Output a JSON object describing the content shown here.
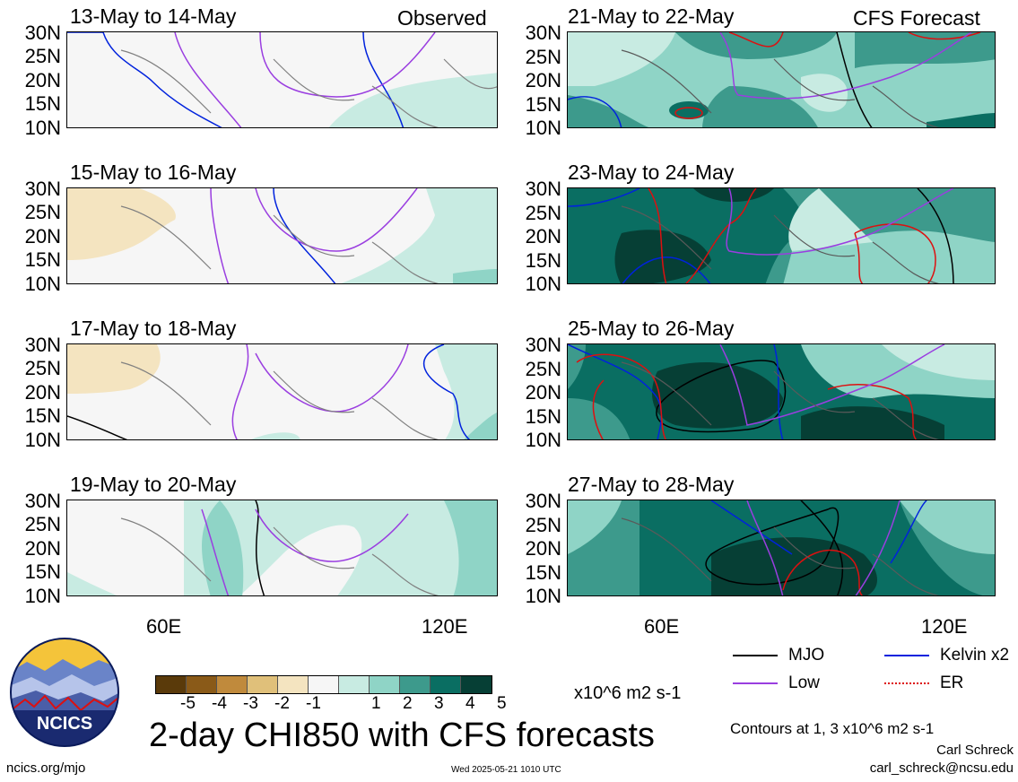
{
  "panels": [
    {
      "title": "13-May to 14-May",
      "tag": "Observed"
    },
    {
      "title": "15-May to 16-May",
      "tag": ""
    },
    {
      "title": "17-May to 18-May",
      "tag": ""
    },
    {
      "title": "19-May to 20-May",
      "tag": ""
    },
    {
      "title": "21-May to 22-May",
      "tag": "CFS Forecast"
    },
    {
      "title": "23-May to 24-May",
      "tag": ""
    },
    {
      "title": "25-May to 26-May",
      "tag": ""
    },
    {
      "title": "27-May to 28-May",
      "tag": ""
    }
  ],
  "lat_labels": [
    "30N",
    "25N",
    "20N",
    "15N",
    "10N"
  ],
  "lon_labels": [
    "60E",
    "120E"
  ],
  "colorbar": {
    "colors": [
      "#5a3a0a",
      "#8a5a18",
      "#c08a3c",
      "#e0c07a",
      "#f4e4c0",
      "#f6f6f6",
      "#c8ebe2",
      "#8fd4c6",
      "#3d9a8c",
      "#0a6e62",
      "#063f35"
    ],
    "ticks": [
      "-5",
      "-4",
      "-3",
      "-2",
      "-1",
      "1",
      "2",
      "3",
      "4",
      "5"
    ],
    "unit": "x10^6 m2 s-1"
  },
  "legend": {
    "mjo": {
      "label": "MJO",
      "color": "#000000"
    },
    "kelvin": {
      "label": "Kelvin x2",
      "color": "#0022dd"
    },
    "low": {
      "label": "Low",
      "color": "#9a3ee0"
    },
    "er": {
      "label": "ER",
      "color": "#dd1010"
    }
  },
  "main_title": "2-day CHI850 with CFS forecasts",
  "contour_note": "Contours at 1, 3 x10^6 m2 s-1",
  "author": "Carl Schreck",
  "email": "carl_schreck@ncsu.edu",
  "site": "ncics.org/mjo",
  "timestamp": "Wed 2025-05-21 1010 UTC",
  "logo_text": "NCICS"
}
